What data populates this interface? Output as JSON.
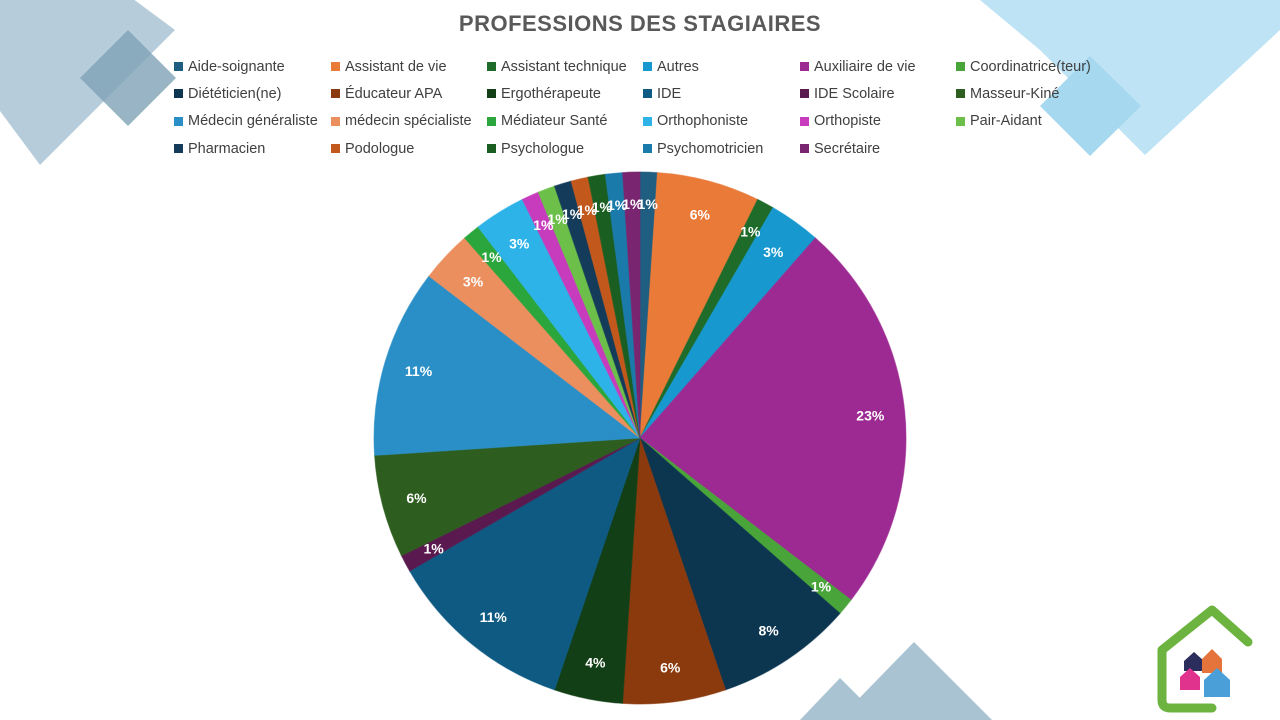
{
  "colors": {
    "deco_light_blue": "#bde3f5",
    "deco_steel": "#a9c3d3",
    "deco_steel_dark": "#7fa2b6",
    "logo_green": "#6cb33f",
    "logo_navy": "#2b2d5c",
    "logo_orange": "#e4743b",
    "logo_magenta": "#e0338e",
    "logo_blue": "#4a9fd8"
  },
  "chart_data": {
    "type": "pie",
    "title": "PROFESSIONS DES STAGIAIRES",
    "legend_position": "top",
    "start_angle_deg": 0,
    "direction": "clockwise",
    "slices": [
      {
        "label": "Aide-soignante",
        "value": 1,
        "display": "1%",
        "color": "#1f5e80"
      },
      {
        "label": "Assistant de vie",
        "value": 6,
        "display": "6%",
        "color": "#e97a38"
      },
      {
        "label": "Assistant technique",
        "value": 1,
        "display": "1%",
        "color": "#1e6b2a"
      },
      {
        "label": "Autres",
        "value": 3,
        "display": "3%",
        "color": "#1799cf"
      },
      {
        "label": "Auxiliaire de vie",
        "value": 23,
        "display": "23%",
        "color": "#9c2a92"
      },
      {
        "label": "Coordinatrice(teur)",
        "value": 1,
        "display": "1%",
        "color": "#49a43a"
      },
      {
        "label": "Diététicien(ne)",
        "value": 8,
        "display": "8%",
        "color": "#0c3550"
      },
      {
        "label": "Éducateur APA",
        "value": 6,
        "display": "6%",
        "color": "#8b3a0e"
      },
      {
        "label": "Ergothérapeute",
        "value": 4,
        "display": "4%",
        "color": "#123f16"
      },
      {
        "label": "IDE",
        "value": 11,
        "display": "11%",
        "color": "#0f5a82"
      },
      {
        "label": "IDE Scolaire",
        "value": 1,
        "display": "1%",
        "color": "#5a1a50"
      },
      {
        "label": "Masseur-Kiné",
        "value": 6,
        "display": "6%",
        "color": "#2e5e1f"
      },
      {
        "label": "Médecin généraliste",
        "value": 11,
        "display": "11%",
        "color": "#2a8fc7"
      },
      {
        "label": "médecin spécialiste",
        "value": 3,
        "display": "3%",
        "color": "#ec8f5f"
      },
      {
        "label": "Médiateur Santé",
        "value": 1,
        "display": "1%",
        "color": "#2aa63c"
      },
      {
        "label": "Orthophoniste",
        "value": 3,
        "display": "3%",
        "color": "#2eb3e8"
      },
      {
        "label": "Orthopiste",
        "value": 1,
        "display": "1%",
        "color": "#c73cbd"
      },
      {
        "label": "Pair-Aidant",
        "value": 1,
        "display": "1%",
        "color": "#6cc04a"
      },
      {
        "label": "Pharmacien",
        "value": 1,
        "display": "1%",
        "color": "#143c5a"
      },
      {
        "label": "Podologue",
        "value": 1,
        "display": "1%",
        "color": "#c3581d"
      },
      {
        "label": "Psychologue",
        "value": 1,
        "display": "1%",
        "color": "#1a5e22"
      },
      {
        "label": "Psychomotricien",
        "value": 1,
        "display": "1%",
        "color": "#1a7aaa"
      },
      {
        "label": "Secrétaire",
        "value": 1,
        "display": "1%",
        "color": "#7a2570"
      }
    ]
  }
}
